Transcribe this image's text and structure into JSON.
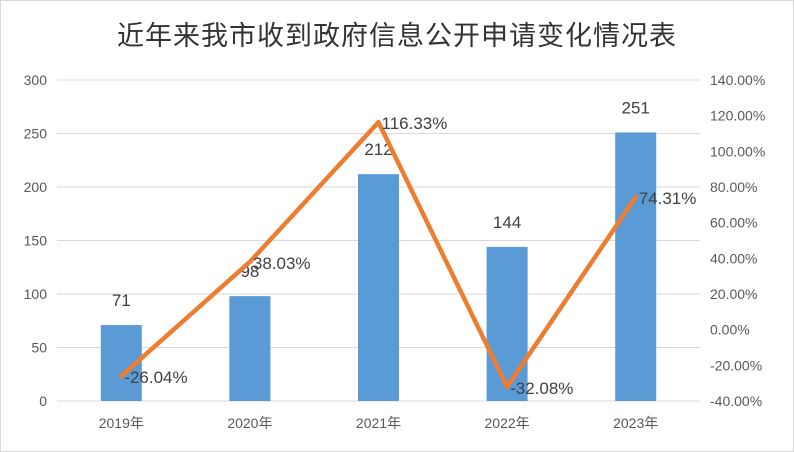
{
  "chart_data": {
    "type": "bar",
    "title": "近年来我市收到政府信息公开申请变化情况表",
    "categories": [
      "2019年",
      "2020年",
      "2021年",
      "2022年",
      "2023年"
    ],
    "series": [
      {
        "type": "bar",
        "values": [
          71,
          98,
          212,
          144,
          251
        ],
        "value_labels": [
          "71",
          "98",
          "212",
          "144",
          "251"
        ],
        "axis": "left",
        "color": "#5b9bd5"
      },
      {
        "type": "line",
        "values": [
          -26.04,
          38.03,
          116.33,
          -32.08,
          74.31
        ],
        "value_labels": [
          "-26.04%",
          "38.03%",
          "116.33%",
          "-32.08%",
          "74.31%"
        ],
        "axis": "right",
        "color": "#ed7d31"
      }
    ],
    "y_left": {
      "min": 0,
      "max": 300,
      "ticks": [
        "0",
        "50",
        "100",
        "150",
        "200",
        "250",
        "300"
      ]
    },
    "y_right": {
      "min": -40,
      "max": 140,
      "ticks": [
        "-40.00%",
        "-20.00%",
        "0.00%",
        "20.00%",
        "40.00%",
        "60.00%",
        "80.00%",
        "100.00%",
        "120.00%",
        "140.00%"
      ]
    },
    "grid": true,
    "legend": "none"
  }
}
